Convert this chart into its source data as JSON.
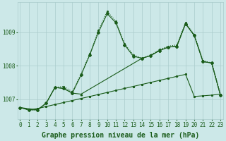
{
  "background_color": "#cce8e8",
  "grid_color": "#aacccc",
  "line_color": "#1a5c1a",
  "xlabel": "Graphe pression niveau de la mer (hPa)",
  "xlabel_fontsize": 7,
  "tick_fontsize": 5.5,
  "ylim": [
    1006.4,
    1009.9
  ],
  "xlim": [
    -0.3,
    23.3
  ],
  "yticks": [
    1007,
    1008,
    1009
  ],
  "xticks": [
    0,
    1,
    2,
    3,
    4,
    5,
    6,
    7,
    8,
    9,
    10,
    11,
    12,
    13,
    14,
    15,
    16,
    17,
    18,
    19,
    20,
    21,
    22,
    23
  ],
  "series": [
    {
      "x": [
        0,
        1,
        2,
        3,
        4,
        5,
        6,
        7,
        8,
        9,
        10,
        11,
        12,
        13,
        14,
        15,
        16,
        17,
        18,
        19,
        20,
        21,
        22,
        23
      ],
      "y": [
        1006.75,
        1006.68,
        1006.72,
        1006.78,
        1006.84,
        1006.9,
        1006.96,
        1007.02,
        1007.08,
        1007.14,
        1007.2,
        1007.26,
        1007.32,
        1007.38,
        1007.44,
        1007.5,
        1007.56,
        1007.62,
        1007.68,
        1007.74,
        1007.08,
        1007.1,
        1007.12,
        1007.15
      ],
      "marker": "s",
      "markersize": 1.2,
      "linewidth": 0.8,
      "linestyle": "-"
    },
    {
      "x": [
        0,
        1,
        2,
        3,
        4,
        5,
        6,
        7,
        8,
        9,
        10,
        11,
        12,
        13,
        14,
        15,
        16,
        17,
        18,
        19,
        20,
        21,
        22,
        23
      ],
      "y": [
        1006.75,
        1006.68,
        1006.68,
        1006.88,
        1007.35,
        1007.38,
        1007.22,
        1007.75,
        1008.35,
        1009.05,
        1009.62,
        1009.32,
        1008.65,
        1008.32,
        1008.22,
        1008.32,
        1008.48,
        1008.58,
        1008.62,
        1009.28,
        1008.92,
        1008.15,
        1008.08,
        1007.15
      ],
      "marker": ".",
      "markersize": 2.5,
      "linewidth": 0.8,
      "linestyle": ":"
    },
    {
      "x": [
        0,
        1,
        2,
        3,
        4,
        5,
        6,
        7,
        8,
        9,
        10,
        11,
        12,
        13,
        14,
        15,
        16,
        17,
        18,
        19,
        20,
        21,
        22,
        23
      ],
      "y": [
        1006.75,
        1006.68,
        1006.68,
        1006.88,
        1007.35,
        1007.32,
        1007.18,
        1007.72,
        1008.32,
        1009.0,
        1009.55,
        1009.28,
        1008.62,
        1008.28,
        1008.22,
        1008.3,
        1008.45,
        1008.55,
        1008.58,
        1009.25,
        1008.9,
        1008.12,
        1008.08,
        1007.12
      ],
      "marker": "D",
      "markersize": 2.0,
      "linewidth": 0.8,
      "linestyle": "-"
    },
    {
      "x": [
        0,
        2,
        3,
        4,
        5,
        6,
        7,
        14,
        15,
        16,
        17,
        18,
        19,
        20,
        21,
        22,
        23
      ],
      "y": [
        1006.75,
        1006.68,
        1006.88,
        1007.35,
        1007.32,
        1007.18,
        1007.15,
        1008.22,
        1008.3,
        1008.45,
        1008.55,
        1008.58,
        1009.25,
        1008.9,
        1008.12,
        1008.08,
        1007.12
      ],
      "marker": "^",
      "markersize": 1.8,
      "linewidth": 0.8,
      "linestyle": "-"
    }
  ]
}
